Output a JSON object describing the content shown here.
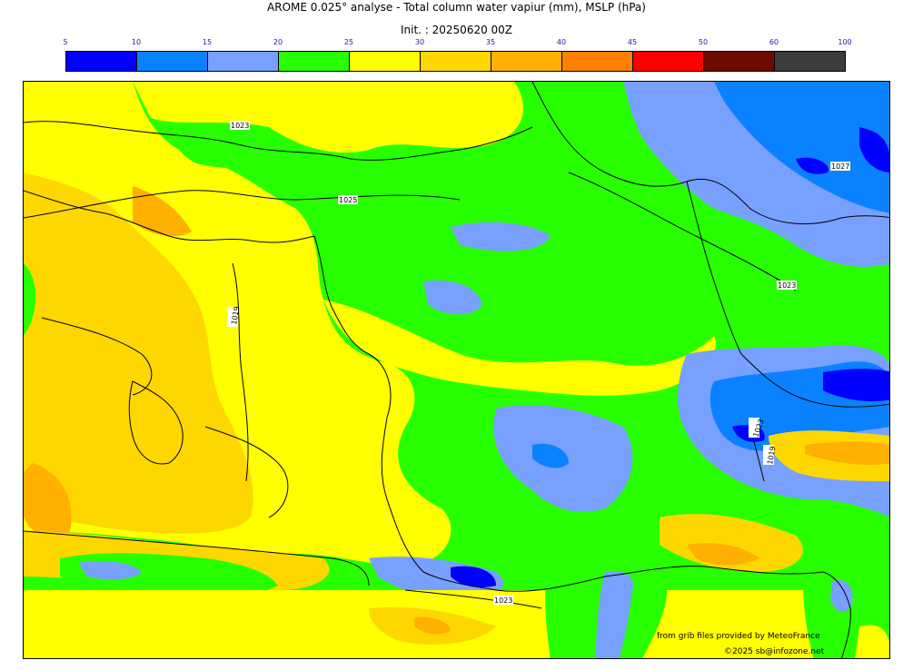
{
  "title": "AROME 0.025° analyse - Total column water vapiur (mm), MSLP (hPa)",
  "init": "Init. : 20250620 00Z",
  "legend": {
    "ticks": [
      "5",
      "10",
      "15",
      "20",
      "25",
      "30",
      "35",
      "40",
      "45",
      "50",
      "60",
      "100"
    ],
    "colors": [
      "#0000ff",
      "#0a82ff",
      "#78a0ff",
      "#27ff00",
      "#ffff00",
      "#ffd700",
      "#ffb000",
      "#ff7f00",
      "#ff0000",
      "#6e0a00",
      "#3c3c3c"
    ]
  },
  "isobars": [
    "1023",
    "1025",
    "1019",
    "1027",
    "1023",
    "1023",
    "1019",
    "1023"
  ],
  "credits": {
    "source": "from grib files provided by MeteoFrance",
    "copyright": "©2025 sb@infozone.net"
  }
}
